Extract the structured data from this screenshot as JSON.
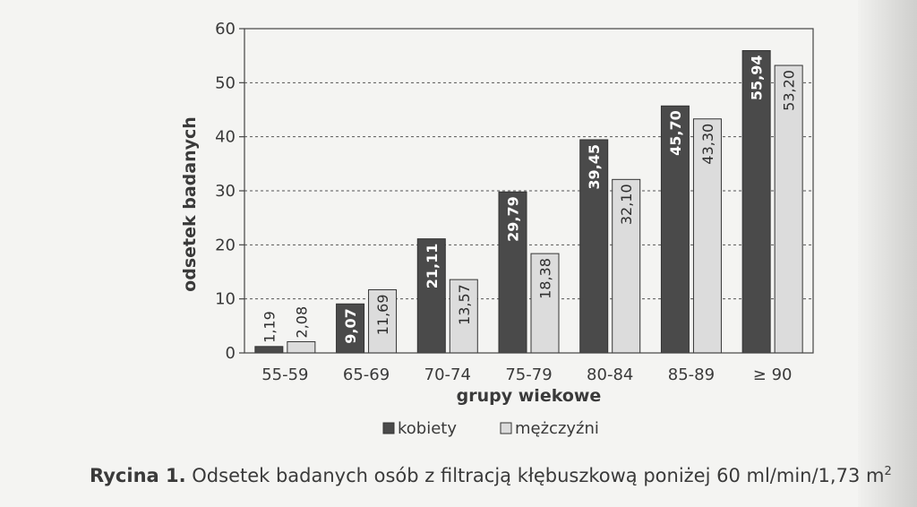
{
  "chart_data": {
    "type": "bar",
    "categories": [
      "55-59",
      "65-69",
      "70-74",
      "75-79",
      "80-84",
      "85-89",
      "≥ 90"
    ],
    "series": [
      {
        "name": "kobiety",
        "values": [
          1.19,
          9.07,
          21.11,
          29.79,
          39.45,
          45.7,
          55.94
        ],
        "value_labels": [
          "1,19",
          "9,07",
          "21,11",
          "29,79",
          "39,45",
          "45,70",
          "55,94"
        ],
        "color": "#4a4a4a"
      },
      {
        "name": "mężczyźni",
        "values": [
          2.08,
          11.69,
          13.57,
          18.38,
          32.1,
          43.3,
          53.2
        ],
        "value_labels": [
          "2,08",
          "11,69",
          "13,57",
          "18,38",
          "32,10",
          "43,30",
          "53,20"
        ],
        "color": "#dcdcdc"
      }
    ],
    "ylim": [
      0,
      60
    ],
    "yticks": [
      0,
      10,
      20,
      30,
      40,
      50,
      60
    ],
    "xlabel": "grupy wiekowe",
    "ylabel": "odsetek badanych",
    "grid": "dotted horizontal",
    "legend": "bottom-center"
  },
  "caption": {
    "lead": "Rycina 1.",
    "text": " Odsetek badanych osób z filtracją kłębuszkową poniżej 60 ml/min/1,73 m",
    "sup": "2"
  }
}
